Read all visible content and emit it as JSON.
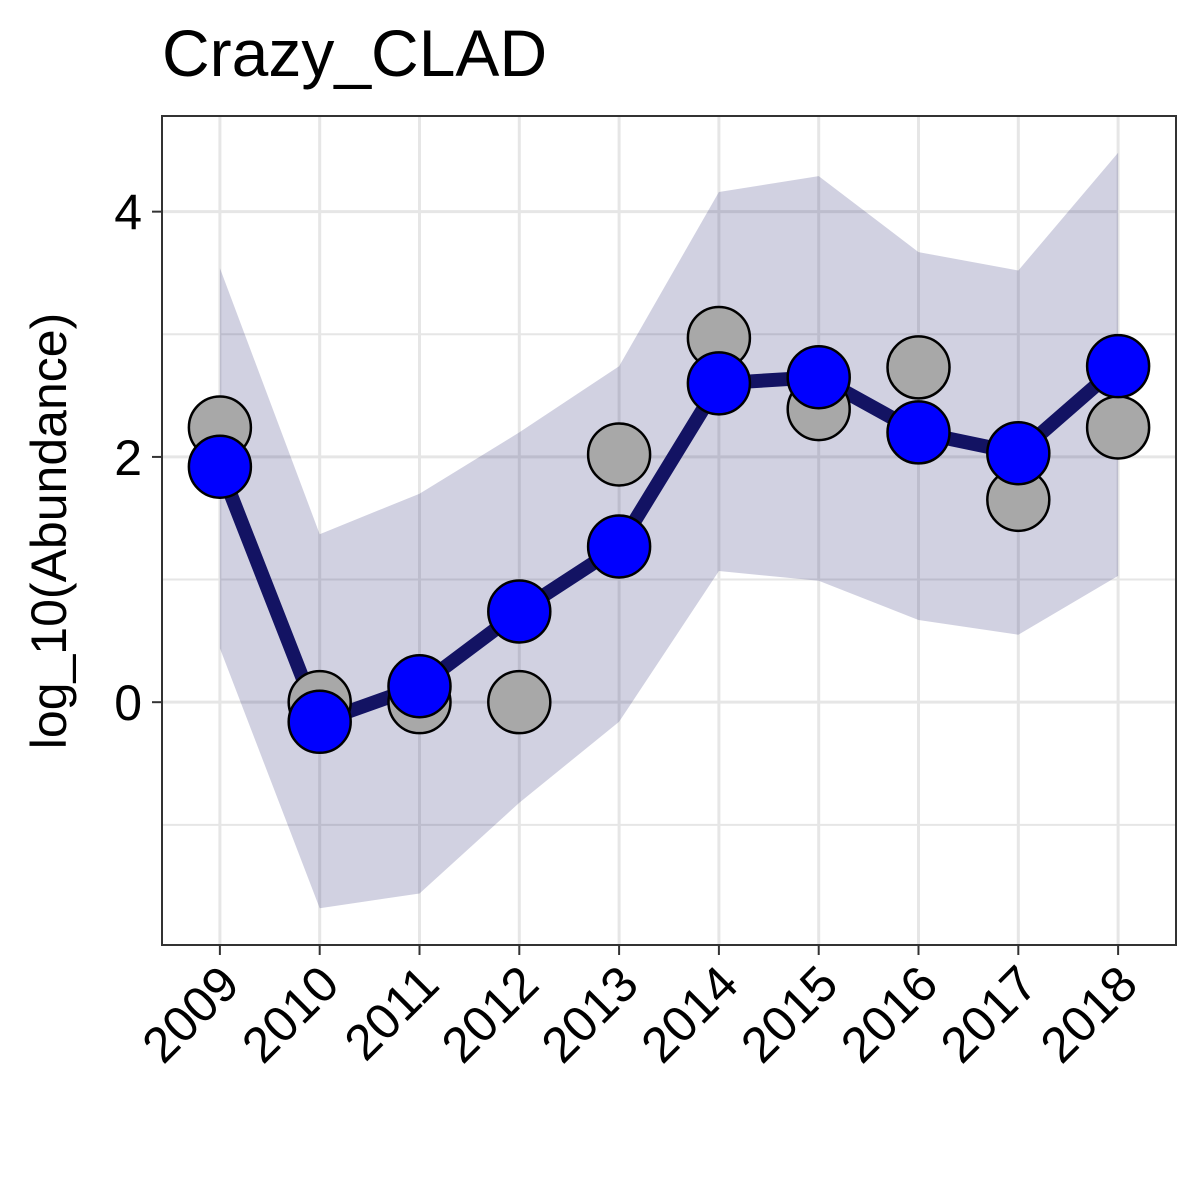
{
  "chart_data": {
    "type": "line",
    "title": "Crazy_CLAD",
    "ylabel": "log_10(Abundance)",
    "xlabel": "",
    "x": [
      "2009",
      "2010",
      "2011",
      "2012",
      "2013",
      "2014",
      "2015",
      "2016",
      "2017",
      "2018"
    ],
    "xlim": [
      2008.42,
      2018.58
    ],
    "ylim": [
      -1.98,
      4.78
    ],
    "y_ticks": [
      0,
      2,
      4
    ],
    "y_tick_labels": [
      "0",
      "2",
      "4"
    ],
    "grid": true,
    "legend": "none",
    "fit": [
      1.92,
      -0.16,
      0.13,
      0.74,
      1.27,
      2.6,
      2.65,
      2.2,
      2.03,
      2.74
    ],
    "ci_lower": [
      0.44,
      -1.68,
      -1.56,
      -0.82,
      -0.16,
      1.07,
      0.99,
      0.67,
      0.55,
      1.03
    ],
    "ci_upper": [
      3.54,
      1.37,
      1.7,
      2.2,
      2.74,
      4.16,
      4.29,
      3.67,
      3.52,
      4.48
    ],
    "observed": [
      2.24,
      0.0,
      0.0,
      0.0,
      2.02,
      2.97,
      2.39,
      2.73,
      1.65,
      2.24
    ],
    "colors": {
      "ribbon": "#1a1a6b",
      "line": "#131363",
      "fit_point": "#0000ff",
      "observed_point": "#a8a8a8",
      "grid": "#e6e6e6",
      "panel_border": "#333333"
    }
  }
}
